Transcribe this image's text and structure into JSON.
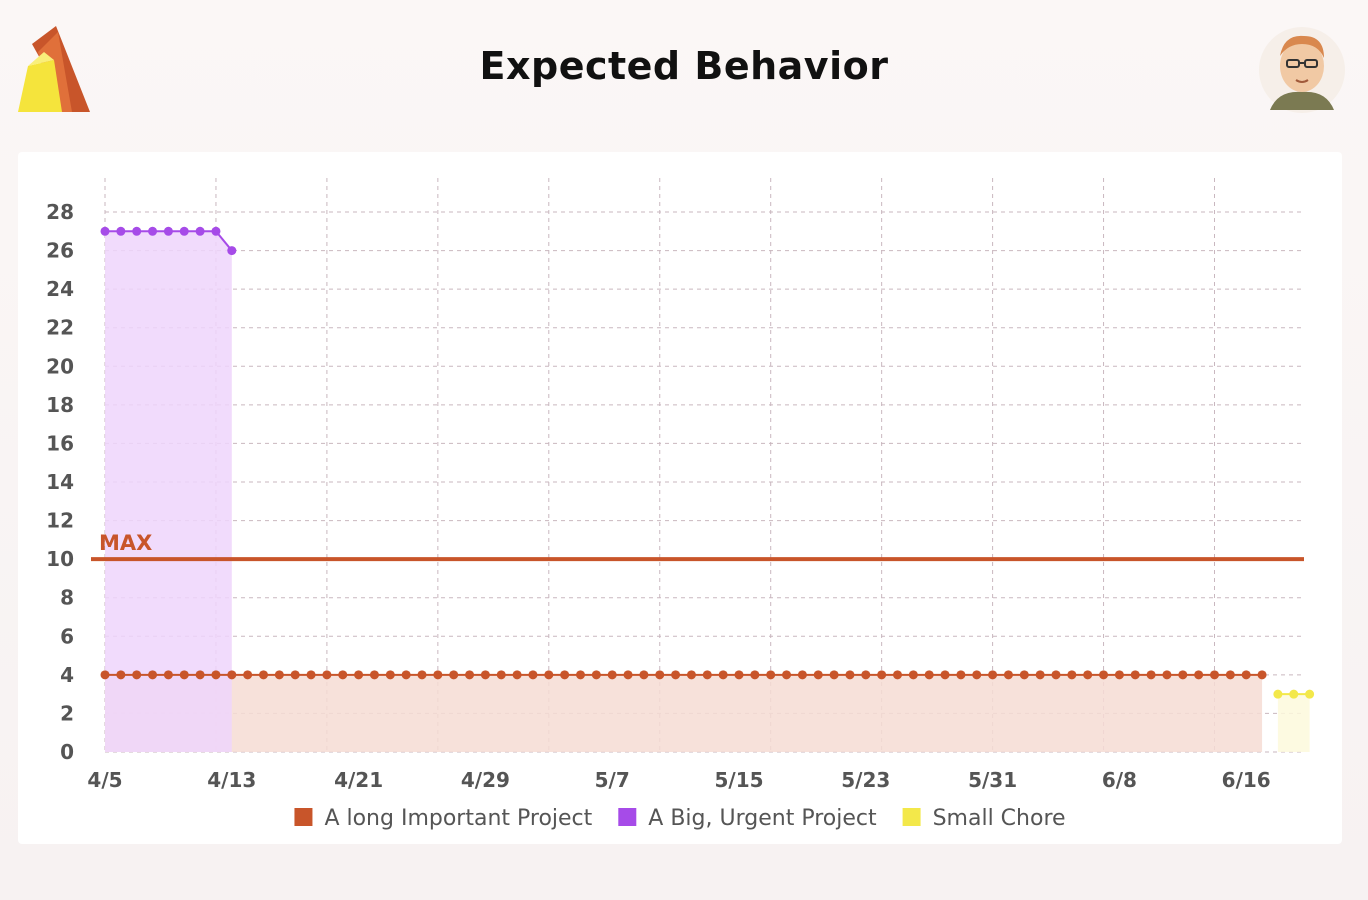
{
  "page": {
    "title": "Expected Behavior"
  },
  "chart_data": {
    "type": "area",
    "x_tick_labels": [
      "4/5",
      "4/13",
      "4/21",
      "4/29",
      "5/7",
      "5/15",
      "5/23",
      "5/31",
      "6/8",
      "6/16"
    ],
    "y_ticks": [
      0,
      2,
      4,
      6,
      8,
      10,
      12,
      14,
      16,
      18,
      20,
      22,
      24,
      26,
      28
    ],
    "ylim": [
      0,
      28
    ],
    "x_range": [
      "4/5",
      "6/19"
    ],
    "grid": true,
    "legend_placement": "bottom",
    "threshold": {
      "label": "MAX",
      "value": 10,
      "color": "#c8552a"
    },
    "series": [
      {
        "name": "A long Important Project",
        "color": "#c8552a",
        "fill": "#f6dcd4",
        "x_start": "4/5",
        "x_end": "6/17",
        "value": 4
      },
      {
        "name": "A Big, Urgent Project",
        "color": "#a64be8",
        "fill": "#eed5fb",
        "x": [
          "4/5",
          "4/6",
          "4/7",
          "4/8",
          "4/9",
          "4/10",
          "4/11",
          "4/12",
          "4/13"
        ],
        "values": [
          27,
          27,
          27,
          27,
          27,
          27,
          27,
          27,
          26
        ]
      },
      {
        "name": "Small Chore",
        "color": "#f3e84a",
        "fill": "#fdf9dc",
        "x": [
          "6/18",
          "6/19",
          "6/20"
        ],
        "values": [
          3,
          3,
          3
        ]
      }
    ]
  }
}
